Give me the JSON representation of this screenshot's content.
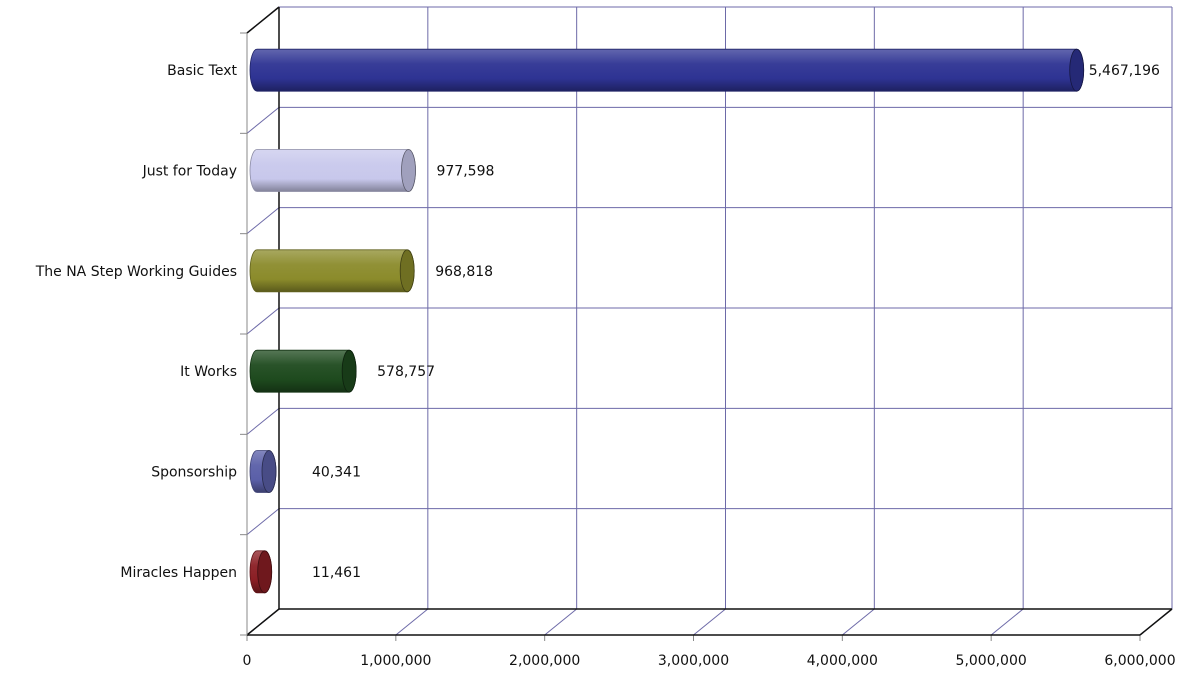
{
  "chart_data": {
    "type": "bar",
    "orientation": "horizontal",
    "style": "3d-cylinder",
    "categories": [
      "Basic Text",
      "Just for Today",
      "The NA Step Working Guides",
      "It Works",
      "Sponsorship",
      "Miracles Happen"
    ],
    "values": [
      5467196,
      977598,
      968818,
      578757,
      40341,
      11461
    ],
    "data_labels": [
      "5,467,196",
      "977,598",
      "968,818",
      "578,757",
      "40,341",
      "11,461"
    ],
    "colors": [
      "#2e3393",
      "#c8c8ec",
      "#8b8b2b",
      "#1e4a1e",
      "#5a5fa8",
      "#8b1e24"
    ],
    "x_ticks": [
      "0",
      "1,000,000",
      "2,000,000",
      "3,000,000",
      "4,000,000",
      "5,000,000",
      "6,000,000"
    ],
    "xlim": [
      0,
      6000000
    ],
    "grid": true,
    "grid_color": "#6d6aa8",
    "title": "",
    "xlabel": "",
    "ylabel": ""
  }
}
